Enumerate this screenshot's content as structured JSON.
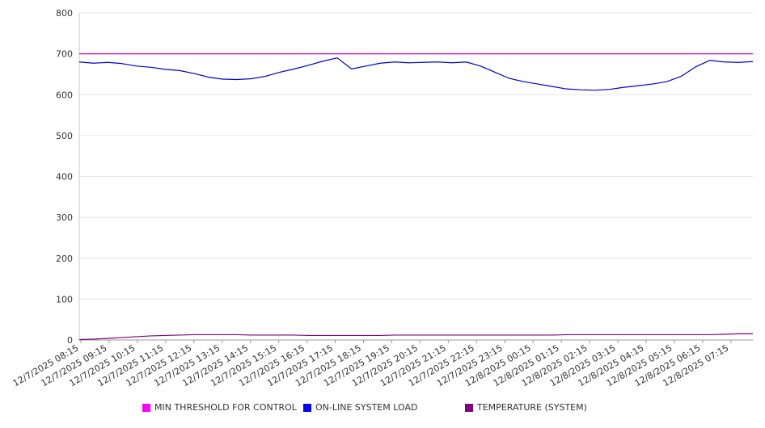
{
  "chart_data": {
    "type": "line",
    "title": "",
    "xlabel": "",
    "ylabel": "",
    "ylim": [
      0,
      800
    ],
    "yticks": [
      "0",
      "100",
      "200",
      "300",
      "400",
      "500",
      "600",
      "700",
      "800"
    ],
    "grid": "horizontal",
    "legend_position": "bottom",
    "x_tick_labels": [
      "12/7/2025 08:15",
      "12/7/2025 09:15",
      "12/7/2025 10:15",
      "12/7/2025 11:15",
      "12/7/2025 12:15",
      "12/7/2025 13:15",
      "12/7/2025 14:15",
      "12/7/2025 15:15",
      "12/7/2025 16:15",
      "12/7/2025 17:15",
      "12/7/2025 18:15",
      "12/7/2025 19:15",
      "12/7/2025 20:15",
      "12/7/2025 21:15",
      "12/7/2025 22:15",
      "12/7/2025 23:15",
      "12/8/2025 00:15",
      "12/8/2025 01:15",
      "12/8/2025 02:15",
      "12/8/2025 03:15",
      "12/8/2025 04:15",
      "12/8/2025 05:15",
      "12/8/2025 06:15",
      "12/8/2025 07:15"
    ],
    "x": [
      "12/7/2025 08:15",
      "12/7/2025 08:45",
      "12/7/2025 09:15",
      "12/7/2025 09:45",
      "12/7/2025 10:15",
      "12/7/2025 10:45",
      "12/7/2025 11:15",
      "12/7/2025 11:45",
      "12/7/2025 12:15",
      "12/7/2025 12:45",
      "12/7/2025 13:15",
      "12/7/2025 13:45",
      "12/7/2025 14:15",
      "12/7/2025 14:45",
      "12/7/2025 15:15",
      "12/7/2025 15:45",
      "12/7/2025 16:15",
      "12/7/2025 16:45",
      "12/7/2025 17:15",
      "12/7/2025 17:45",
      "12/7/2025 18:15",
      "12/7/2025 18:45",
      "12/7/2025 19:15",
      "12/7/2025 19:45",
      "12/7/2025 20:15",
      "12/7/2025 20:45",
      "12/7/2025 21:15",
      "12/7/2025 21:45",
      "12/7/2025 22:15",
      "12/7/2025 22:45",
      "12/7/2025 23:15",
      "12/7/2025 23:45",
      "12/8/2025 00:15",
      "12/8/2025 00:45",
      "12/8/2025 01:15",
      "12/8/2025 01:45",
      "12/8/2025 02:15",
      "12/8/2025 02:45",
      "12/8/2025 03:15",
      "12/8/2025 03:45",
      "12/8/2025 04:15",
      "12/8/2025 04:45",
      "12/8/2025 05:15",
      "12/8/2025 05:45",
      "12/8/2025 06:15",
      "12/8/2025 06:45",
      "12/8/2025 07:15",
      "12/8/2025 07:45"
    ],
    "series": [
      {
        "name": "MIN THRESHOLD FOR CONTROL",
        "color": "#cc00cc",
        "swatch_color": "#ff00ff",
        "values": [
          700,
          700,
          700,
          700,
          700,
          700,
          700,
          700,
          700,
          700,
          700,
          700,
          700,
          700,
          700,
          700,
          700,
          700,
          700,
          700,
          700,
          700,
          700,
          700,
          700,
          700,
          700,
          700,
          700,
          700,
          700,
          700,
          700,
          700,
          700,
          700,
          700,
          700,
          700,
          700,
          700,
          700,
          700,
          700,
          700,
          700,
          700,
          700
        ]
      },
      {
        "name": "ON-LINE SYSTEM LOAD",
        "color": "#0000cc",
        "swatch_color": "#0000ff",
        "values": [
          680,
          677,
          679,
          676,
          670,
          667,
          662,
          659,
          652,
          643,
          638,
          637,
          639,
          645,
          655,
          663,
          672,
          682,
          690,
          663,
          670,
          677,
          680,
          678,
          679,
          680,
          678,
          680,
          670,
          655,
          640,
          632,
          626,
          620,
          614,
          612,
          611,
          613,
          618,
          622,
          626,
          632,
          645,
          668,
          684,
          680,
          679,
          681
        ]
      },
      {
        "name": "TEMPERATURE (SYSTEM)",
        "color": "#800080",
        "swatch_color": "#800080",
        "values": [
          1,
          2,
          4,
          6,
          8,
          10,
          11,
          12,
          13,
          13,
          13,
          13,
          12,
          12,
          12,
          12,
          11,
          11,
          11,
          11,
          11,
          11,
          12,
          12,
          12,
          12,
          12,
          12,
          12,
          12,
          12,
          12,
          12,
          12,
          13,
          13,
          13,
          13,
          13,
          13,
          13,
          13,
          13,
          13,
          13,
          14,
          15,
          15
        ]
      }
    ]
  }
}
